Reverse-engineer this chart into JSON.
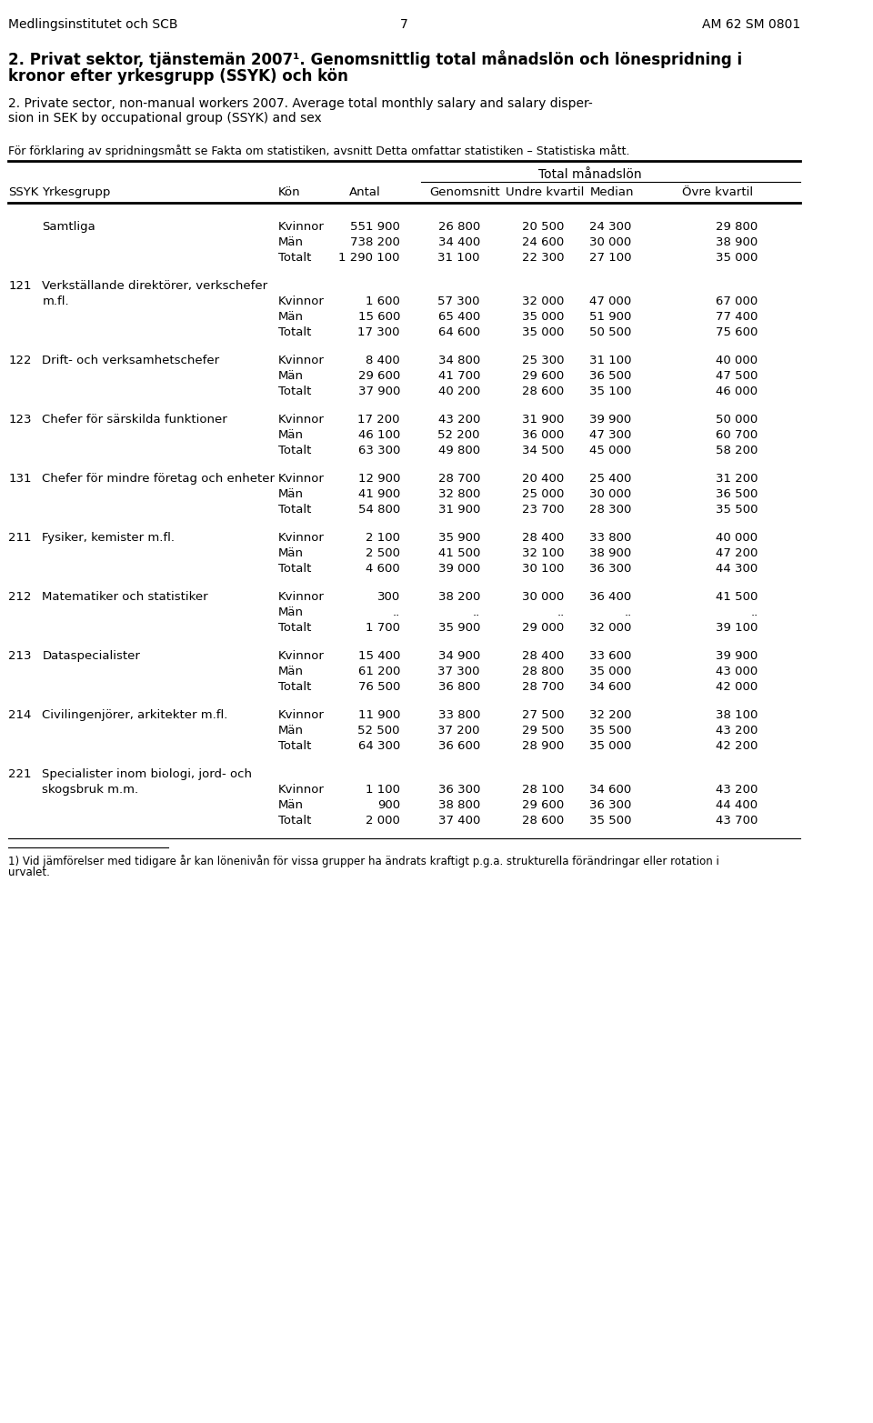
{
  "header_left": "Medlingsinstitutet och SCB",
  "header_center": "7",
  "header_right": "AM 62 SM 0801",
  "title_swedish": "2. Privat sektor, tjänstemän 2007¹. Genomsnittlig total månadslön och lönespridning i\nkronor efter yrkesgrupp (SSYK) och kön",
  "title_english": "2. Private sector, non-manual workers 2007. Average total monthly salary and salary disper-\nsion in SEK by occupational group (SSYK) and sex",
  "footnote_swedish": "För förklaring av spridningsmått se Fakta om statistiken, avsnitt Detta omfattar statistiken – Statistiska mått.",
  "col_headers": [
    "SSYK",
    "Yrkesgrupp",
    "Kön",
    "Antal",
    "Genomsnitt",
    "Undre kvartil",
    "Median",
    "Övre kvartil"
  ],
  "col_group_header": "Total månadslön",
  "rows": [
    {
      "ssyk": "",
      "yrkesgrupp": "Samtliga",
      "kon": "Kvinnor",
      "antal": "551 900",
      "genomsnitt": "26 800",
      "undre": "20 500",
      "median": "24 300",
      "ovre": "29 800"
    },
    {
      "ssyk": "",
      "yrkesgrupp": "",
      "kon": "Män",
      "antal": "738 200",
      "genomsnitt": "34 400",
      "undre": "24 600",
      "median": "30 000",
      "ovre": "38 900"
    },
    {
      "ssyk": "",
      "yrkesgrupp": "",
      "kon": "Totalt",
      "antal": "1 290 100",
      "genomsnitt": "31 100",
      "undre": "22 300",
      "median": "27 100",
      "ovre": "35 000"
    },
    {
      "ssyk": "121",
      "yrkesgrupp": "Verkställande direktörer, verkschefer\nm.fl.",
      "kon": "Kvinnor",
      "antal": "1 600",
      "genomsnitt": "57 300",
      "undre": "32 000",
      "median": "47 000",
      "ovre": "67 000"
    },
    {
      "ssyk": "",
      "yrkesgrupp": "",
      "kon": "Män",
      "antal": "15 600",
      "genomsnitt": "65 400",
      "undre": "35 000",
      "median": "51 900",
      "ovre": "77 400"
    },
    {
      "ssyk": "",
      "yrkesgrupp": "",
      "kon": "Totalt",
      "antal": "17 300",
      "genomsnitt": "64 600",
      "undre": "35 000",
      "median": "50 500",
      "ovre": "75 600"
    },
    {
      "ssyk": "122",
      "yrkesgrupp": "Drift- och verksamhetschefer",
      "kon": "Kvinnor",
      "antal": "8 400",
      "genomsnitt": "34 800",
      "undre": "25 300",
      "median": "31 100",
      "ovre": "40 000"
    },
    {
      "ssyk": "",
      "yrkesgrupp": "",
      "kon": "Män",
      "antal": "29 600",
      "genomsnitt": "41 700",
      "undre": "29 600",
      "median": "36 500",
      "ovre": "47 500"
    },
    {
      "ssyk": "",
      "yrkesgrupp": "",
      "kon": "Totalt",
      "antal": "37 900",
      "genomsnitt": "40 200",
      "undre": "28 600",
      "median": "35 100",
      "ovre": "46 000"
    },
    {
      "ssyk": "123",
      "yrkesgrupp": "Chefer för särskilda funktioner",
      "kon": "Kvinnor",
      "antal": "17 200",
      "genomsnitt": "43 200",
      "undre": "31 900",
      "median": "39 900",
      "ovre": "50 000"
    },
    {
      "ssyk": "",
      "yrkesgrupp": "",
      "kon": "Män",
      "antal": "46 100",
      "genomsnitt": "52 200",
      "undre": "36 000",
      "median": "47 300",
      "ovre": "60 700"
    },
    {
      "ssyk": "",
      "yrkesgrupp": "",
      "kon": "Totalt",
      "antal": "63 300",
      "genomsnitt": "49 800",
      "undre": "34 500",
      "median": "45 000",
      "ovre": "58 200"
    },
    {
      "ssyk": "131",
      "yrkesgrupp": "Chefer för mindre företag och enheter",
      "kon": "Kvinnor",
      "antal": "12 900",
      "genomsnitt": "28 700",
      "undre": "20 400",
      "median": "25 400",
      "ovre": "31 200"
    },
    {
      "ssyk": "",
      "yrkesgrupp": "",
      "kon": "Män",
      "antal": "41 900",
      "genomsnitt": "32 800",
      "undre": "25 000",
      "median": "30 000",
      "ovre": "36 500"
    },
    {
      "ssyk": "",
      "yrkesgrupp": "",
      "kon": "Totalt",
      "antal": "54 800",
      "genomsnitt": "31 900",
      "undre": "23 700",
      "median": "28 300",
      "ovre": "35 500"
    },
    {
      "ssyk": "211",
      "yrkesgrupp": "Fysiker, kemister m.fl.",
      "kon": "Kvinnor",
      "antal": "2 100",
      "genomsnitt": "35 900",
      "undre": "28 400",
      "median": "33 800",
      "ovre": "40 000"
    },
    {
      "ssyk": "",
      "yrkesgrupp": "",
      "kon": "Män",
      "antal": "2 500",
      "genomsnitt": "41 500",
      "undre": "32 100",
      "median": "38 900",
      "ovre": "47 200"
    },
    {
      "ssyk": "",
      "yrkesgrupp": "",
      "kon": "Totalt",
      "antal": "4 600",
      "genomsnitt": "39 000",
      "undre": "30 100",
      "median": "36 300",
      "ovre": "44 300"
    },
    {
      "ssyk": "212",
      "yrkesgrupp": "Matematiker och statistiker",
      "kon": "Kvinnor",
      "antal": "300",
      "genomsnitt": "38 200",
      "undre": "30 000",
      "median": "36 400",
      "ovre": "41 500"
    },
    {
      "ssyk": "",
      "yrkesgrupp": "",
      "kon": "Män",
      "antal": "..",
      "genomsnitt": "..",
      "undre": "..",
      "median": "..",
      "ovre": ".."
    },
    {
      "ssyk": "",
      "yrkesgrupp": "",
      "kon": "Totalt",
      "antal": "1 700",
      "genomsnitt": "35 900",
      "undre": "29 000",
      "median": "32 000",
      "ovre": "39 100"
    },
    {
      "ssyk": "213",
      "yrkesgrupp": "Dataspecialister",
      "kon": "Kvinnor",
      "antal": "15 400",
      "genomsnitt": "34 900",
      "undre": "28 400",
      "median": "33 600",
      "ovre": "39 900"
    },
    {
      "ssyk": "",
      "yrkesgrupp": "",
      "kon": "Män",
      "antal": "61 200",
      "genomsnitt": "37 300",
      "undre": "28 800",
      "median": "35 000",
      "ovre": "43 000"
    },
    {
      "ssyk": "",
      "yrkesgrupp": "",
      "kon": "Totalt",
      "antal": "76 500",
      "genomsnitt": "36 800",
      "undre": "28 700",
      "median": "34 600",
      "ovre": "42 000"
    },
    {
      "ssyk": "214",
      "yrkesgrupp": "Civilingenjörer, arkitekter m.fl.",
      "kon": "Kvinnor",
      "antal": "11 900",
      "genomsnitt": "33 800",
      "undre": "27 500",
      "median": "32 200",
      "ovre": "38 100"
    },
    {
      "ssyk": "",
      "yrkesgrupp": "",
      "kon": "Män",
      "antal": "52 500",
      "genomsnitt": "37 200",
      "undre": "29 500",
      "median": "35 500",
      "ovre": "43 200"
    },
    {
      "ssyk": "",
      "yrkesgrupp": "",
      "kon": "Totalt",
      "antal": "64 300",
      "genomsnitt": "36 600",
      "undre": "28 900",
      "median": "35 000",
      "ovre": "42 200"
    },
    {
      "ssyk": "221",
      "yrkesgrupp": "Specialister inom biologi, jord- och\nskogsbruk m.m.",
      "kon": "Kvinnor",
      "antal": "1 100",
      "genomsnitt": "36 300",
      "undre": "28 100",
      "median": "34 600",
      "ovre": "43 200"
    },
    {
      "ssyk": "",
      "yrkesgrupp": "",
      "kon": "Män",
      "antal": "900",
      "genomsnitt": "38 800",
      "undre": "29 600",
      "median": "36 300",
      "ovre": "44 400"
    },
    {
      "ssyk": "",
      "yrkesgrupp": "",
      "kon": "Totalt",
      "antal": "2 000",
      "genomsnitt": "37 400",
      "undre": "28 600",
      "median": "35 500",
      "ovre": "43 700"
    }
  ],
  "footnote1": "1) Vid jämförelser med tidigare år kan lönenivån för vissa grupper ha ändrats kraftigt p.g.a. strukturella förändringar eller rotation i\nurvalet."
}
